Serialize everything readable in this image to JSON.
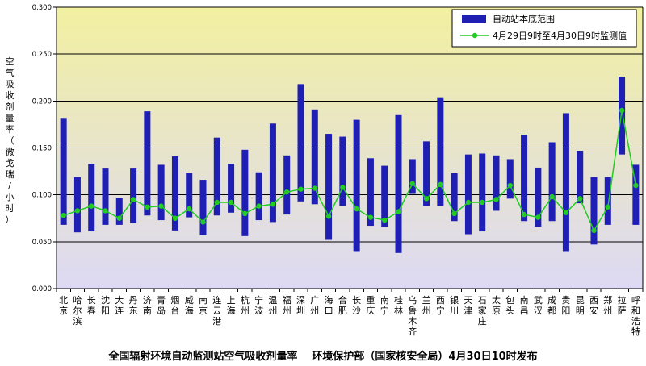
{
  "chart_data": {
    "type": "bar",
    "y_axis_label": "空气吸收剂量率（微戈瑞/小时）",
    "ylim": [
      0,
      0.3
    ],
    "yticks": [
      "0.000",
      "0.050",
      "0.100",
      "0.150",
      "0.200",
      "0.250",
      "0.300"
    ],
    "grid": true,
    "legend_position": "top-right",
    "background_gradient": [
      "#f2f0a0",
      "#ddd9f4"
    ],
    "series": [
      {
        "name": "自动站本底范围",
        "kind": "range-bar",
        "color": "#1f1fb3",
        "low": [
          0.068,
          0.06,
          0.061,
          0.068,
          0.068,
          0.07,
          0.078,
          0.073,
          0.062,
          0.076,
          0.057,
          0.078,
          0.081,
          0.056,
          0.073,
          0.071,
          0.079,
          0.093,
          0.09,
          0.052,
          0.088,
          0.04,
          0.067,
          0.066,
          0.038,
          0.101,
          0.088,
          0.088,
          0.072,
          0.058,
          0.061,
          0.083,
          0.096,
          0.072,
          0.066,
          0.072,
          0.04,
          0.091,
          0.047,
          0.068,
          0.143,
          0.068
        ],
        "high": [
          0.182,
          0.119,
          0.133,
          0.128,
          0.097,
          0.128,
          0.189,
          0.132,
          0.141,
          0.123,
          0.116,
          0.161,
          0.133,
          0.148,
          0.124,
          0.176,
          0.142,
          0.218,
          0.191,
          0.165,
          0.162,
          0.18,
          0.139,
          0.131,
          0.185,
          0.138,
          0.157,
          0.204,
          0.123,
          0.143,
          0.144,
          0.142,
          0.138,
          0.164,
          0.129,
          0.156,
          0.187,
          0.147,
          0.119,
          0.119,
          0.226,
          0.132
        ]
      },
      {
        "name": "4月29日9时至4月30日9时监测值",
        "kind": "line",
        "color": "#22cc22",
        "values": [
          0.078,
          0.083,
          0.088,
          0.083,
          0.075,
          0.095,
          0.087,
          0.088,
          0.075,
          0.085,
          0.071,
          0.092,
          0.092,
          0.08,
          0.088,
          0.09,
          0.103,
          0.106,
          0.107,
          0.077,
          0.108,
          0.085,
          0.076,
          0.073,
          0.082,
          0.112,
          0.096,
          0.111,
          0.08,
          0.092,
          0.092,
          0.095,
          0.11,
          0.079,
          0.076,
          0.098,
          0.081,
          0.096,
          0.062,
          0.087,
          0.19,
          0.11
        ]
      }
    ],
    "categories": [
      "北京",
      "哈尔滨",
      "长春",
      "沈阳",
      "大连",
      "丹东",
      "济南",
      "青岛",
      "烟台",
      "威海",
      "南京",
      "连云港",
      "上海",
      "杭州",
      "宁波",
      "温州",
      "福州",
      "深圳",
      "广州",
      "海口",
      "合肥",
      "长沙",
      "重庆",
      "南宁",
      "桂林",
      "乌鲁木齐",
      "兰州",
      "西宁",
      "银川",
      "天津",
      "石家庄",
      "太原",
      "包头",
      "南昌",
      "武汉",
      "成都",
      "贵阳",
      "昆明",
      "西安",
      "郑州",
      "拉萨",
      "呼和浩特"
    ],
    "caption": "全国辐射环境自动监测站空气吸收剂量率    环境保护部（国家核安全局）4月30日10时发布"
  }
}
